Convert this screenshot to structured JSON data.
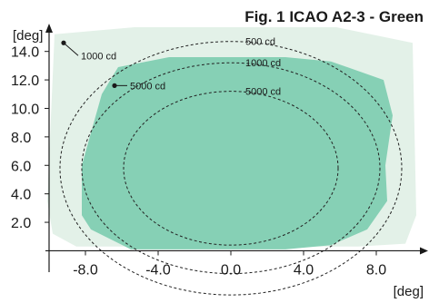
{
  "chart_data": {
    "type": "area",
    "title": "Fig. 1 ICAO A2-3 - Green",
    "xlabel": "[deg]",
    "ylabel": "[deg]",
    "xlim": [
      -10.6,
      10.8
    ],
    "ylim": [
      -1.5,
      15.7
    ],
    "x_ticks": [
      "-8.0",
      "-4.0",
      "0.0",
      "4.0",
      "8.0"
    ],
    "y_ticks": [
      "2.0",
      "4.0",
      "6.0",
      "8.0",
      "10.0",
      "12.0",
      "14.0"
    ],
    "colors": {
      "light_region": "#e3f1e8",
      "main_region": "#86d0b5",
      "contour": "#222222"
    },
    "regions": [
      {
        "fill": "light",
        "points": [
          [
            -9.7,
            15.2
          ],
          [
            -5.3,
            15.7
          ],
          [
            5.8,
            15.7
          ],
          [
            10.0,
            14.6
          ],
          [
            10.2,
            2.5
          ],
          [
            9.6,
            0.5
          ],
          [
            7.0,
            0.3
          ],
          [
            -8.5,
            0.3
          ],
          [
            -9.8,
            1.2
          ],
          [
            -10.1,
            3.5
          ]
        ]
      },
      {
        "fill": "main",
        "points": [
          [
            -7.7,
            1.5
          ],
          [
            -5.5,
            0.1
          ],
          [
            3.0,
            0.1
          ],
          [
            5.5,
            0.4
          ],
          [
            7.5,
            1.5
          ],
          [
            8.6,
            3.5
          ],
          [
            8.5,
            6.0
          ],
          [
            8.9,
            9.5
          ],
          [
            8.4,
            12.0
          ],
          [
            5.5,
            13.3
          ],
          [
            3.0,
            13.6
          ],
          [
            -3.4,
            13.6
          ],
          [
            -6.2,
            12.9
          ],
          [
            -7.1,
            11.0
          ],
          [
            -8.2,
            6.0
          ],
          [
            -8.2,
            2.5
          ]
        ]
      }
    ],
    "contours": [
      {
        "label": "500 cd",
        "cx": 0.0,
        "cy": 5.8,
        "rx": 9.4,
        "ry": 8.9
      },
      {
        "label": "1000 cd",
        "cx": 0.0,
        "cy": 5.8,
        "rx": 8.2,
        "ry": 7.4
      },
      {
        "label": "5000 cd",
        "cx": 0.0,
        "cy": 5.8,
        "rx": 5.9,
        "ry": 5.4
      }
    ],
    "points": [
      {
        "label": "1000 cd",
        "x": -9.2,
        "y": 14.6
      },
      {
        "label": "5000 cd",
        "x": -6.4,
        "y": 11.6
      }
    ]
  }
}
